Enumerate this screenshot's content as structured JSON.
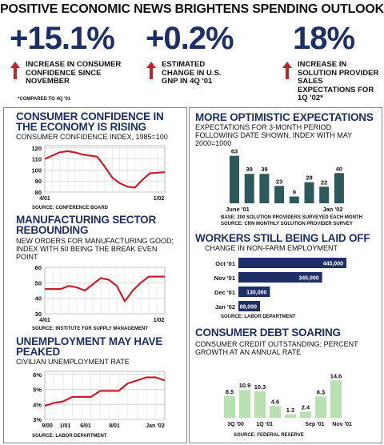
{
  "banner": {
    "title": "POSITIVE ECONOMIC NEWS BRIGHTENS SPENDING OUTLOOK"
  },
  "stats": [
    {
      "value": "+15.1%",
      "desc": "INCREASE IN CONSUMER CONFIDENCE SINCE NOVEMBER"
    },
    {
      "value": "+0.2%",
      "desc": "ESTIMATED CHANGE IN U.S. GNP IN 4Q '01"
    },
    {
      "value": "18%",
      "desc": "INCREASE IN SOLUTION PROVIDER SALES EXPECTATIONS FOR 1Q '02*"
    }
  ],
  "note": "*COMPARED TO 4Q '01",
  "colors": {
    "accent": "#1e2f66",
    "line": "#c8202a",
    "bar_dark": "#2c5a5a",
    "bar_navy": "#1e2f66",
    "bar_green": "#b9e0b1",
    "arrow": "#c8202a"
  },
  "panels": {
    "confidence": {
      "title": "CONSUMER CONFIDENCE IN THE ECONOMY IS RISING",
      "subtitle": "CONSUMER CONFIDENCE INDEX, 1985=100",
      "source": "SOURCE: CONFERENCE BOARD"
    },
    "manufacturing": {
      "title": "MANUFACTURING SECTOR REBOUNDING",
      "subtitle": "NEW ORDERS FOR MANUFACTURING GOOD; INDEX WITH 50 BEING THE BREAK EVEN POINT",
      "source": "SOURCE: INSTITUTE FOR SUPPLY MANAGEMENT"
    },
    "unemployment": {
      "title": "UNEMPLOYMENT MAY HAVE PEAKED",
      "subtitle": "CIVILIAN UNEMPLOYMENT RATE",
      "source": "SOURCE: LABOR DEPARTMENT"
    },
    "optimistic": {
      "title": "MORE OPTIMISTIC EXPECTATIONS",
      "subtitle": "EXPECTATIONS FOR 3-MONTH PERIOD FOLLOWING DATE SHOWN, INDEX WITH MAY 2000=1000",
      "source1": "BASE: 200 SOLUTION PROVIDERS SURVEYED EACH MONTH",
      "source2": "SOURCE: CRN MONTHLY SOLUTION PROVIDER SURVEY"
    },
    "layoffs": {
      "title": "WORKERS STILL BEING LAID OFF",
      "subtitle": "CHANGE IN NON-FARM EMPLOYMENT",
      "source": "SOURCE: LABOR DEPARTMENT"
    },
    "debt": {
      "title": "CONSUMER DEBT SOARING",
      "subtitle": "CONSUMER CREDIT OUTSTANDING; PERCENT GROWTH AT AN ANNUAL RATE",
      "source": "SOURCE: FEDERAL RESERVE"
    }
  },
  "chart_data": [
    {
      "id": "confidence",
      "type": "line",
      "x_labels": [
        "4/01",
        "1/02"
      ],
      "yticks": [
        80,
        90,
        100,
        110,
        120
      ],
      "ylim": [
        80,
        122
      ],
      "values": [
        110,
        113,
        116,
        117,
        116,
        114,
        113,
        112,
        103,
        93,
        88,
        85,
        84,
        91,
        97,
        97.5,
        98
      ],
      "grid": true
    },
    {
      "id": "manufacturing",
      "type": "line",
      "x_labels": [
        "4/01",
        "1/02"
      ],
      "yticks": [
        30,
        40,
        50,
        60
      ],
      "ylim": [
        30,
        60
      ],
      "values": [
        46,
        46,
        46,
        48,
        47,
        45,
        49,
        53,
        52,
        48,
        38,
        45,
        50,
        54,
        54,
        54
      ],
      "grid": true
    },
    {
      "id": "unemployment",
      "type": "line",
      "x_labels": [
        "9/00",
        "1/01",
        "6/01",
        "8/01",
        "Jan '02"
      ],
      "yticks": [
        "3%",
        "4%",
        "5%",
        "6%"
      ],
      "ytick_values": [
        3,
        4,
        5,
        6
      ],
      "ylim": [
        3,
        6.2
      ],
      "values": [
        3.9,
        4.1,
        4.2,
        4.5,
        4.5,
        4.5,
        4.9,
        4.9,
        4.9,
        5.4,
        5.6,
        5.8,
        5.8,
        5.6
      ],
      "grid": true
    },
    {
      "id": "optimistic",
      "type": "bar",
      "x_labels": [
        "June '01",
        "Jan '02"
      ],
      "values": [
        63,
        39,
        39,
        23,
        9,
        28,
        22,
        40
      ],
      "ylim": [
        0,
        70
      ]
    },
    {
      "id": "layoffs",
      "type": "bar",
      "orientation": "horizontal",
      "categories": [
        "Oct '01",
        "Nov '01",
        "Dec '01",
        "Jan '02"
      ],
      "values": [
        445000,
        345000,
        130000,
        89000
      ],
      "value_labels": [
        "445,000",
        "345,000",
        "130,000",
        "89,000"
      ],
      "xlim": [
        0,
        445000
      ]
    },
    {
      "id": "debt",
      "type": "bar",
      "x_labels": [
        "3Q '00",
        "1Q '01",
        "Sep '01",
        "Nov '01"
      ],
      "values": [
        8.5,
        10.9,
        10.3,
        4.6,
        1.3,
        2.4,
        8.3,
        14.6
      ],
      "value_labels": [
        "8.5",
        "10.9",
        "10.3",
        "4.6",
        "1.3",
        "2.4",
        "8.3",
        "14.6"
      ],
      "ylim": [
        0,
        15
      ]
    }
  ]
}
